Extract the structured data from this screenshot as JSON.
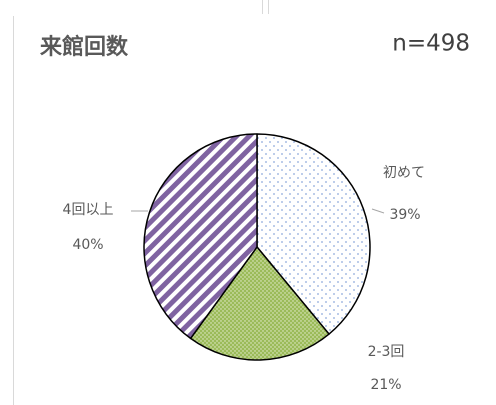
{
  "chart_data": {
    "type": "pie",
    "title": "来館回数",
    "subtitle": "n=498",
    "categories": [
      "初めて",
      "2-3回",
      "4回以上"
    ],
    "values": [
      39,
      21,
      40
    ],
    "value_labels": [
      "39%",
      "21%",
      "40%"
    ],
    "colors": [
      "#8eaadb",
      "#9bbb59",
      "#7f63a1"
    ]
  }
}
